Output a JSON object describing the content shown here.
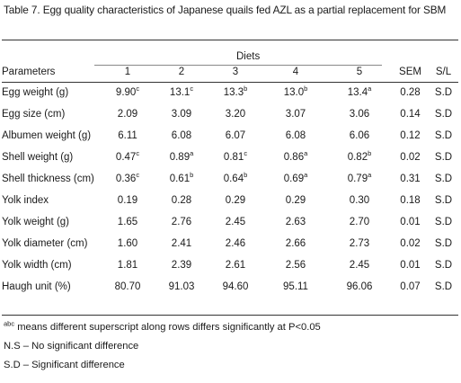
{
  "caption": "Table 7. Egg quality characteristics of Japanese quails fed AZL as a partial replacement for SBM",
  "diets_label": "Diets",
  "headers": {
    "parameter": "Parameters",
    "d1": "1",
    "d2": "2",
    "d3": "3",
    "d4": "4",
    "d5": "5",
    "sem": "SEM",
    "sl": "S/L"
  },
  "rows": [
    {
      "param": "Egg weight (g)",
      "v": [
        [
          "9.90",
          "c"
        ],
        [
          "13.1",
          "c"
        ],
        [
          "13.3",
          "b"
        ],
        [
          "13.0",
          "b"
        ],
        [
          "13.4",
          "a"
        ]
      ],
      "sem": "0.28",
      "sl": "S.D"
    },
    {
      "param": "Egg size (cm)",
      "v": [
        [
          "2.09",
          ""
        ],
        [
          "3.09",
          ""
        ],
        [
          "3.20",
          ""
        ],
        [
          "3.07",
          ""
        ],
        [
          "3.06",
          ""
        ]
      ],
      "sem": "0.14",
      "sl": "S.D"
    },
    {
      "param": "Albumen weight (g)",
      "v": [
        [
          "6.11",
          ""
        ],
        [
          "6.08",
          ""
        ],
        [
          "6.07",
          ""
        ],
        [
          "6.08",
          ""
        ],
        [
          "6.06",
          ""
        ]
      ],
      "sem": "0.12",
      "sl": "S.D"
    },
    {
      "param": "Shell weight (g)",
      "v": [
        [
          "0.47",
          "c"
        ],
        [
          "0.89",
          "a"
        ],
        [
          "0.81",
          "c"
        ],
        [
          "0.86",
          "a"
        ],
        [
          "0.82",
          "b"
        ]
      ],
      "sem": "0.02",
      "sl": "S.D"
    },
    {
      "param": "Shell thickness (cm)",
      "v": [
        [
          "0.36",
          "c"
        ],
        [
          "0.61",
          "b"
        ],
        [
          "0.64",
          "b"
        ],
        [
          "0.69",
          "a"
        ],
        [
          "0.79",
          "a"
        ]
      ],
      "sem": "0.31",
      "sl": "S.D"
    },
    {
      "param": "Yolk index",
      "v": [
        [
          "0.19",
          ""
        ],
        [
          "0.28",
          ""
        ],
        [
          "0.29",
          ""
        ],
        [
          "0.29",
          ""
        ],
        [
          "0.30",
          ""
        ]
      ],
      "sem": "0.18",
      "sl": "S.D"
    },
    {
      "param": "Yolk weight (g)",
      "v": [
        [
          "1.65",
          ""
        ],
        [
          "2.76",
          ""
        ],
        [
          "2.45",
          ""
        ],
        [
          "2.63",
          ""
        ],
        [
          "2.70",
          ""
        ]
      ],
      "sem": "0.01",
      "sl": "S.D"
    },
    {
      "param": "Yolk diameter (cm)",
      "v": [
        [
          "1.60",
          ""
        ],
        [
          "2.41",
          ""
        ],
        [
          "2.46",
          ""
        ],
        [
          "2.66",
          ""
        ],
        [
          "2.73",
          ""
        ]
      ],
      "sem": "0.02",
      "sl": "S.D"
    },
    {
      "param": "Yolk width (cm)",
      "v": [
        [
          "1.81",
          ""
        ],
        [
          "2.39",
          ""
        ],
        [
          "2.61",
          ""
        ],
        [
          "2.56",
          ""
        ],
        [
          "2.45",
          ""
        ]
      ],
      "sem": "0.01",
      "sl": "S.D"
    },
    {
      "param": "Haugh unit (%)",
      "v": [
        [
          "80.70",
          ""
        ],
        [
          "91.03",
          ""
        ],
        [
          "94.60",
          ""
        ],
        [
          "95.11",
          ""
        ],
        [
          "96.06",
          ""
        ]
      ],
      "sem": "0.07",
      "sl": "S.D"
    }
  ],
  "notes": {
    "superscript_sup": "abc",
    "superscript_text": " means different superscript along rows differs significantly at P<0.05",
    "ns": "N.S – No significant difference",
    "sd": "S.D – Significant difference"
  }
}
